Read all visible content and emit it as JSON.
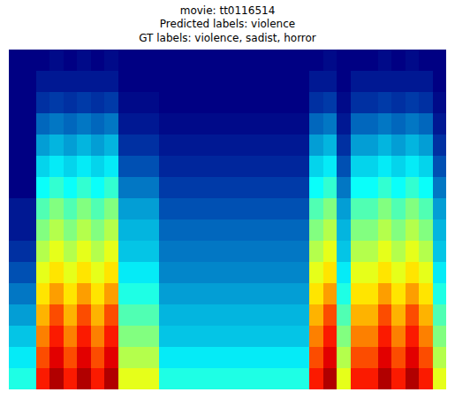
{
  "chart_data": {
    "type": "heatmap",
    "title": [
      "movie: tt0116514",
      "Predicted labels: violence",
      "GT labels: violence, sadist, horror"
    ],
    "color": "Jet",
    "tick_labels": false,
    "zlim": [
      0,
      1
    ],
    "z": [
      [
        0.4,
        0.4,
        0.85,
        0.95,
        0.85,
        0.95,
        0.85,
        0.95,
        0.6,
        0.6,
        0.6,
        0.4,
        0.4,
        0.4,
        0.4,
        0.4,
        0.4,
        0.4,
        0.4,
        0.4,
        0.4,
        0.4,
        0.85,
        0.95,
        0.6,
        0.85,
        0.85,
        0.95,
        0.85,
        0.95,
        0.85,
        0.6
      ],
      [
        0.35,
        0.35,
        0.8,
        0.9,
        0.8,
        0.9,
        0.8,
        0.9,
        0.55,
        0.55,
        0.55,
        0.35,
        0.35,
        0.35,
        0.35,
        0.35,
        0.35,
        0.35,
        0.35,
        0.35,
        0.35,
        0.35,
        0.8,
        0.9,
        0.55,
        0.8,
        0.8,
        0.9,
        0.8,
        0.9,
        0.8,
        0.55
      ],
      [
        0.3,
        0.3,
        0.75,
        0.85,
        0.75,
        0.85,
        0.75,
        0.85,
        0.5,
        0.5,
        0.5,
        0.3,
        0.3,
        0.3,
        0.3,
        0.3,
        0.3,
        0.3,
        0.3,
        0.3,
        0.3,
        0.3,
        0.75,
        0.85,
        0.5,
        0.75,
        0.75,
        0.85,
        0.75,
        0.85,
        0.75,
        0.5
      ],
      [
        0.25,
        0.25,
        0.7,
        0.8,
        0.7,
        0.8,
        0.7,
        0.8,
        0.45,
        0.45,
        0.45,
        0.28,
        0.28,
        0.28,
        0.28,
        0.28,
        0.28,
        0.28,
        0.28,
        0.28,
        0.28,
        0.28,
        0.7,
        0.8,
        0.45,
        0.7,
        0.7,
        0.8,
        0.7,
        0.8,
        0.7,
        0.45
      ],
      [
        0.2,
        0.2,
        0.65,
        0.72,
        0.65,
        0.72,
        0.65,
        0.72,
        0.4,
        0.4,
        0.4,
        0.25,
        0.25,
        0.25,
        0.25,
        0.25,
        0.25,
        0.25,
        0.25,
        0.25,
        0.25,
        0.25,
        0.65,
        0.72,
        0.4,
        0.65,
        0.65,
        0.72,
        0.65,
        0.72,
        0.65,
        0.4
      ],
      [
        0.15,
        0.15,
        0.6,
        0.65,
        0.6,
        0.65,
        0.6,
        0.65,
        0.35,
        0.35,
        0.35,
        0.22,
        0.22,
        0.22,
        0.22,
        0.22,
        0.22,
        0.22,
        0.22,
        0.22,
        0.22,
        0.22,
        0.6,
        0.65,
        0.35,
        0.6,
        0.6,
        0.65,
        0.6,
        0.65,
        0.6,
        0.35
      ],
      [
        0.1,
        0.1,
        0.55,
        0.6,
        0.55,
        0.6,
        0.55,
        0.6,
        0.3,
        0.3,
        0.3,
        0.2,
        0.2,
        0.2,
        0.2,
        0.2,
        0.2,
        0.2,
        0.2,
        0.2,
        0.2,
        0.2,
        0.55,
        0.6,
        0.3,
        0.55,
        0.55,
        0.6,
        0.55,
        0.6,
        0.55,
        0.3
      ],
      [
        0.05,
        0.05,
        0.5,
        0.55,
        0.5,
        0.55,
        0.5,
        0.55,
        0.28,
        0.28,
        0.28,
        0.18,
        0.18,
        0.18,
        0.18,
        0.18,
        0.18,
        0.18,
        0.18,
        0.18,
        0.18,
        0.18,
        0.5,
        0.55,
        0.28,
        0.5,
        0.5,
        0.55,
        0.5,
        0.55,
        0.5,
        0.28
      ],
      [
        0.05,
        0.05,
        0.45,
        0.5,
        0.45,
        0.5,
        0.45,
        0.5,
        0.25,
        0.25,
        0.25,
        0.15,
        0.15,
        0.15,
        0.15,
        0.15,
        0.15,
        0.15,
        0.15,
        0.15,
        0.15,
        0.15,
        0.45,
        0.5,
        0.25,
        0.45,
        0.45,
        0.5,
        0.45,
        0.5,
        0.45,
        0.25
      ],
      [
        0.0,
        0.0,
        0.38,
        0.42,
        0.38,
        0.42,
        0.38,
        0.42,
        0.2,
        0.2,
        0.2,
        0.12,
        0.12,
        0.12,
        0.12,
        0.12,
        0.12,
        0.12,
        0.12,
        0.12,
        0.12,
        0.12,
        0.38,
        0.42,
        0.2,
        0.38,
        0.38,
        0.42,
        0.38,
        0.42,
        0.38,
        0.2
      ],
      [
        0.0,
        0.0,
        0.32,
        0.35,
        0.32,
        0.35,
        0.32,
        0.35,
        0.15,
        0.15,
        0.15,
        0.08,
        0.08,
        0.08,
        0.08,
        0.08,
        0.08,
        0.08,
        0.08,
        0.08,
        0.08,
        0.08,
        0.32,
        0.35,
        0.15,
        0.32,
        0.32,
        0.35,
        0.32,
        0.35,
        0.32,
        0.15
      ],
      [
        0.0,
        0.0,
        0.25,
        0.28,
        0.25,
        0.28,
        0.25,
        0.28,
        0.1,
        0.1,
        0.1,
        0.05,
        0.05,
        0.05,
        0.05,
        0.05,
        0.05,
        0.05,
        0.05,
        0.05,
        0.05,
        0.05,
        0.25,
        0.28,
        0.1,
        0.25,
        0.25,
        0.28,
        0.25,
        0.28,
        0.25,
        0.1
      ],
      [
        0.0,
        0.0,
        0.18,
        0.2,
        0.18,
        0.2,
        0.18,
        0.2,
        0.05,
        0.05,
        0.05,
        0.02,
        0.02,
        0.02,
        0.02,
        0.02,
        0.02,
        0.02,
        0.02,
        0.02,
        0.02,
        0.02,
        0.18,
        0.2,
        0.05,
        0.18,
        0.18,
        0.2,
        0.18,
        0.2,
        0.18,
        0.05
      ],
      [
        0.0,
        0.0,
        0.1,
        0.12,
        0.1,
        0.12,
        0.1,
        0.12,
        0.02,
        0.02,
        0.02,
        0.0,
        0.0,
        0.0,
        0.0,
        0.0,
        0.0,
        0.0,
        0.0,
        0.0,
        0.0,
        0.0,
        0.1,
        0.12,
        0.02,
        0.1,
        0.1,
        0.12,
        0.1,
        0.12,
        0.1,
        0.02
      ],
      [
        0.0,
        0.0,
        0.05,
        0.05,
        0.05,
        0.05,
        0.05,
        0.05,
        0.0,
        0.0,
        0.0,
        0.0,
        0.0,
        0.0,
        0.0,
        0.0,
        0.0,
        0.0,
        0.0,
        0.0,
        0.0,
        0.0,
        0.05,
        0.05,
        0.0,
        0.05,
        0.05,
        0.05,
        0.05,
        0.05,
        0.05,
        0.0
      ],
      [
        0.0,
        0.0,
        0.0,
        0.02,
        0.0,
        0.02,
        0.0,
        0.02,
        0.0,
        0.0,
        0.0,
        0.0,
        0.0,
        0.0,
        0.0,
        0.0,
        0.0,
        0.0,
        0.0,
        0.0,
        0.0,
        0.0,
        0.0,
        0.02,
        0.0,
        0.0,
        0.0,
        0.02,
        0.0,
        0.02,
        0.0,
        0.0
      ]
    ]
  }
}
